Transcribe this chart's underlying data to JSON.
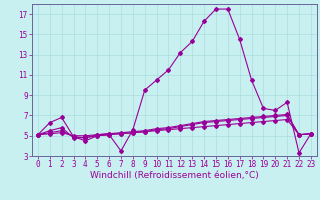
{
  "xlabel": "Windchill (Refroidissement éolien,°C)",
  "background_color": "#c8f0f0",
  "line_color": "#990099",
  "grid_color": "#aadddd",
  "x": [
    0,
    1,
    2,
    3,
    4,
    5,
    6,
    7,
    8,
    9,
    10,
    11,
    12,
    13,
    14,
    15,
    16,
    17,
    18,
    19,
    20,
    21,
    22,
    23
  ],
  "series": [
    [
      5.1,
      6.3,
      6.8,
      4.9,
      4.5,
      5.0,
      5.1,
      3.5,
      5.6,
      9.5,
      10.5,
      11.5,
      13.2,
      14.3,
      16.3,
      17.5,
      17.5,
      14.5,
      10.5,
      7.7,
      7.5,
      8.3,
      3.3,
      5.2
    ],
    [
      5.1,
      5.5,
      5.8,
      4.8,
      4.8,
      5.1,
      5.2,
      5.3,
      5.4,
      5.5,
      5.7,
      5.8,
      6.0,
      6.2,
      6.4,
      6.5,
      6.6,
      6.7,
      6.8,
      6.9,
      7.0,
      7.1,
      5.1,
      5.2
    ],
    [
      5.1,
      5.2,
      5.3,
      5.0,
      5.0,
      5.1,
      5.2,
      5.2,
      5.3,
      5.4,
      5.5,
      5.6,
      5.7,
      5.8,
      5.9,
      6.0,
      6.1,
      6.2,
      6.3,
      6.4,
      6.5,
      6.6,
      5.1,
      5.2
    ],
    [
      5.1,
      5.3,
      5.5,
      4.9,
      4.8,
      5.0,
      5.1,
      5.2,
      5.3,
      5.4,
      5.6,
      5.7,
      5.9,
      6.1,
      6.3,
      6.4,
      6.5,
      6.6,
      6.7,
      6.8,
      6.9,
      7.0,
      5.1,
      5.2
    ]
  ],
  "ylim": [
    3,
    18
  ],
  "xlim": [
    -0.5,
    23.5
  ],
  "yticks": [
    3,
    5,
    7,
    9,
    11,
    13,
    15,
    17
  ],
  "xticks": [
    0,
    1,
    2,
    3,
    4,
    5,
    6,
    7,
    8,
    9,
    10,
    11,
    12,
    13,
    14,
    15,
    16,
    17,
    18,
    19,
    20,
    21,
    22,
    23
  ],
  "tick_fontsize": 5.5,
  "xlabel_fontsize": 6.5,
  "marker": "D",
  "markersize": 2.0,
  "linewidth": 0.8
}
